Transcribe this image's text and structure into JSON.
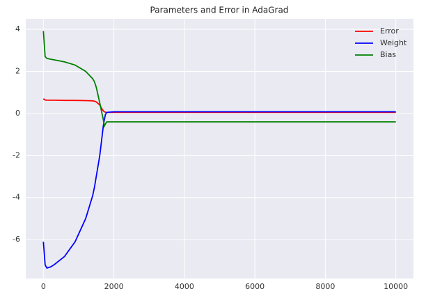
{
  "chart_data": {
    "type": "line",
    "title": "Parameters and Error in AdaGrad",
    "x": [
      0,
      50,
      100,
      200,
      300,
      600,
      900,
      1200,
      1400,
      1450,
      1500,
      1600,
      1650,
      1700,
      1730,
      1760,
      1800,
      2000,
      4000,
      6000,
      8000,
      10000
    ],
    "series": [
      {
        "name": "Error",
        "color": "#ff0000",
        "values": [
          0.7,
          0.64,
          0.63,
          0.63,
          0.63,
          0.62,
          0.62,
          0.61,
          0.6,
          0.58,
          0.55,
          0.4,
          0.25,
          0.12,
          0.08,
          0.06,
          0.05,
          0.05,
          0.05,
          0.05,
          0.05,
          0.05
        ]
      },
      {
        "name": "Weight",
        "color": "#0000ff",
        "values": [
          -6.1,
          -7.2,
          -7.35,
          -7.3,
          -7.2,
          -6.8,
          -6.1,
          -5.0,
          -3.9,
          -3.5,
          -3.0,
          -2.0,
          -1.3,
          -0.6,
          -0.3,
          -0.05,
          0.05,
          0.08,
          0.08,
          0.08,
          0.08,
          0.08
        ]
      },
      {
        "name": "Bias",
        "color": "#008000",
        "values": [
          3.92,
          2.7,
          2.62,
          2.58,
          2.55,
          2.45,
          2.3,
          2.0,
          1.65,
          1.5,
          1.25,
          0.5,
          0.1,
          -0.3,
          -0.6,
          -0.5,
          -0.4,
          -0.4,
          -0.4,
          -0.4,
          -0.4,
          -0.4
        ]
      }
    ],
    "xlim": [
      -500,
      10500
    ],
    "ylim": [
      -7.85,
      4.5
    ],
    "xticks": [
      0,
      2000,
      4000,
      6000,
      8000,
      10000
    ],
    "yticks": [
      -6,
      -4,
      -2,
      0,
      2,
      4
    ],
    "grid": true,
    "legend": "upper-right"
  }
}
